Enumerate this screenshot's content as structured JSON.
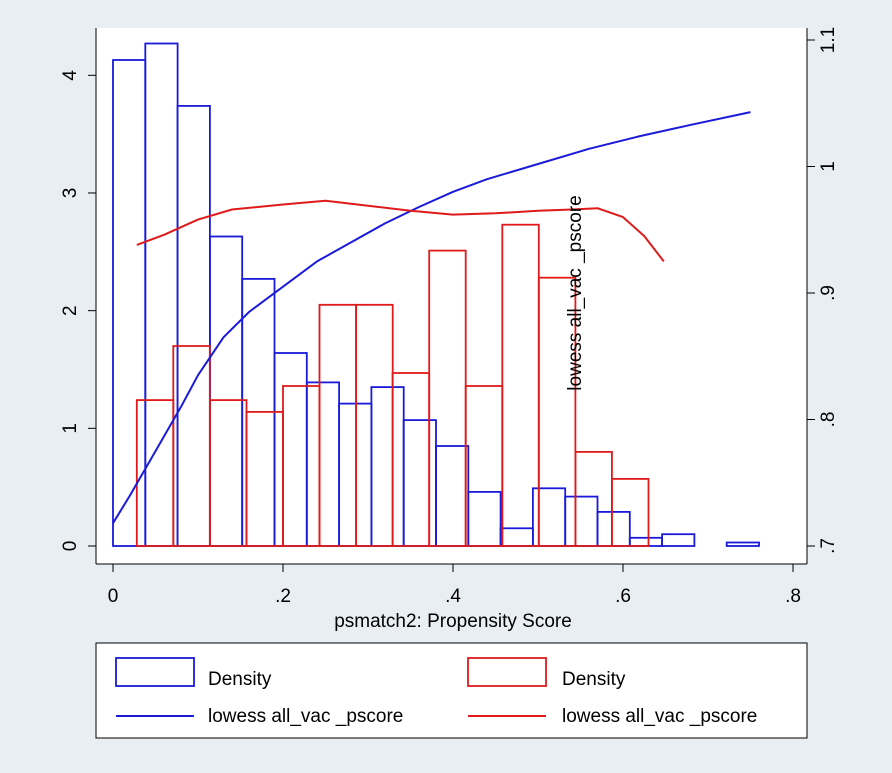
{
  "chart_data": {
    "type": "bar",
    "xlabel": "psmatch2: Propensity Score",
    "ylabel_right": "lowess all_vac _pscore",
    "xlim": [
      0,
      0.8
    ],
    "ylim_left": [
      0,
      4.3
    ],
    "ylim_right": [
      0.7,
      1.1
    ],
    "x_ticks": [
      {
        "value": 0,
        "label": "0"
      },
      {
        "value": 0.2,
        "label": ".2"
      },
      {
        "value": 0.4,
        "label": ".4"
      },
      {
        "value": 0.6,
        "label": ".6"
      },
      {
        "value": 0.8,
        "label": ".8"
      }
    ],
    "y_left_ticks": [
      {
        "value": 0,
        "label": "0"
      },
      {
        "value": 1,
        "label": "1"
      },
      {
        "value": 2,
        "label": "2"
      },
      {
        "value": 3,
        "label": "3"
      },
      {
        "value": 4,
        "label": "4"
      }
    ],
    "y_right_ticks": [
      {
        "value": 0.7,
        "label": ".7"
      },
      {
        "value": 0.8,
        "label": ".8"
      },
      {
        "value": 0.9,
        "label": ".9"
      },
      {
        "value": 1.0,
        "label": "1"
      },
      {
        "value": 1.1,
        "label": "1.1"
      }
    ],
    "grid": false,
    "legend_position": "bottom",
    "colors": {
      "blue": "#1a1adb",
      "red": "#e01a1a",
      "plot_bg": "#ffffff",
      "outer_bg": "#e9eef2"
    },
    "histograms": [
      {
        "name": "Density",
        "color": "#1a1adb",
        "bins": [
          {
            "x0": 0.0,
            "x1": 0.038,
            "y": 4.13
          },
          {
            "x0": 0.038,
            "x1": 0.076,
            "y": 4.27
          },
          {
            "x0": 0.076,
            "x1": 0.114,
            "y": 3.74
          },
          {
            "x0": 0.114,
            "x1": 0.152,
            "y": 2.63
          },
          {
            "x0": 0.152,
            "x1": 0.19,
            "y": 2.27
          },
          {
            "x0": 0.19,
            "x1": 0.228,
            "y": 1.64
          },
          {
            "x0": 0.228,
            "x1": 0.266,
            "y": 1.39
          },
          {
            "x0": 0.266,
            "x1": 0.304,
            "y": 1.21
          },
          {
            "x0": 0.304,
            "x1": 0.342,
            "y": 1.35
          },
          {
            "x0": 0.342,
            "x1": 0.38,
            "y": 1.07
          },
          {
            "x0": 0.38,
            "x1": 0.418,
            "y": 0.85
          },
          {
            "x0": 0.418,
            "x1": 0.456,
            "y": 0.46
          },
          {
            "x0": 0.456,
            "x1": 0.494,
            "y": 0.15
          },
          {
            "x0": 0.494,
            "x1": 0.532,
            "y": 0.49
          },
          {
            "x0": 0.532,
            "x1": 0.57,
            "y": 0.42
          },
          {
            "x0": 0.57,
            "x1": 0.608,
            "y": 0.29
          },
          {
            "x0": 0.608,
            "x1": 0.646,
            "y": 0.07
          },
          {
            "x0": 0.646,
            "x1": 0.684,
            "y": 0.1
          },
          {
            "x0": 0.722,
            "x1": 0.76,
            "y": 0.03
          }
        ]
      },
      {
        "name": "Density",
        "color": "#e01a1a",
        "bins": [
          {
            "x0": 0.028,
            "x1": 0.071,
            "y": 1.24
          },
          {
            "x0": 0.071,
            "x1": 0.114,
            "y": 1.7
          },
          {
            "x0": 0.114,
            "x1": 0.157,
            "y": 1.24
          },
          {
            "x0": 0.157,
            "x1": 0.2,
            "y": 1.14
          },
          {
            "x0": 0.2,
            "x1": 0.243,
            "y": 1.36
          },
          {
            "x0": 0.243,
            "x1": 0.286,
            "y": 2.05
          },
          {
            "x0": 0.286,
            "x1": 0.329,
            "y": 2.05
          },
          {
            "x0": 0.329,
            "x1": 0.372,
            "y": 1.47
          },
          {
            "x0": 0.372,
            "x1": 0.415,
            "y": 2.51
          },
          {
            "x0": 0.415,
            "x1": 0.458,
            "y": 1.36
          },
          {
            "x0": 0.458,
            "x1": 0.501,
            "y": 2.73
          },
          {
            "x0": 0.501,
            "x1": 0.544,
            "y": 2.28
          },
          {
            "x0": 0.544,
            "x1": 0.587,
            "y": 0.8
          },
          {
            "x0": 0.587,
            "x1": 0.63,
            "y": 0.57
          }
        ]
      }
    ],
    "lines": [
      {
        "name": "lowess all_vac _pscore",
        "color": "#1a1adb",
        "axis": "right",
        "points": [
          [
            0.0,
            0.718
          ],
          [
            0.02,
            0.74
          ],
          [
            0.05,
            0.775
          ],
          [
            0.08,
            0.81
          ],
          [
            0.1,
            0.835
          ],
          [
            0.13,
            0.865
          ],
          [
            0.16,
            0.885
          ],
          [
            0.2,
            0.905
          ],
          [
            0.24,
            0.925
          ],
          [
            0.28,
            0.94
          ],
          [
            0.32,
            0.955
          ],
          [
            0.36,
            0.968
          ],
          [
            0.4,
            0.98
          ],
          [
            0.44,
            0.99
          ],
          [
            0.5,
            1.002
          ],
          [
            0.56,
            1.014
          ],
          [
            0.62,
            1.024
          ],
          [
            0.68,
            1.033
          ],
          [
            0.75,
            1.043
          ]
        ]
      },
      {
        "name": "lowess all_vac _pscore",
        "color": "#e01a1a",
        "axis": "right",
        "points": [
          [
            0.028,
            0.938
          ],
          [
            0.06,
            0.946
          ],
          [
            0.1,
            0.958
          ],
          [
            0.14,
            0.966
          ],
          [
            0.2,
            0.97
          ],
          [
            0.25,
            0.973
          ],
          [
            0.3,
            0.969
          ],
          [
            0.35,
            0.965
          ],
          [
            0.4,
            0.962
          ],
          [
            0.45,
            0.963
          ],
          [
            0.5,
            0.965
          ],
          [
            0.54,
            0.966
          ],
          [
            0.57,
            0.967
          ],
          [
            0.6,
            0.96
          ],
          [
            0.625,
            0.945
          ],
          [
            0.648,
            0.925
          ]
        ]
      }
    ],
    "legend": [
      {
        "kind": "box",
        "color": "#1a1adb",
        "label": "Density"
      },
      {
        "kind": "box",
        "color": "#e01a1a",
        "label": "Density"
      },
      {
        "kind": "line",
        "color": "#1a1adb",
        "label": "lowess all_vac _pscore"
      },
      {
        "kind": "line",
        "color": "#e01a1a",
        "label": "lowess all_vac _pscore"
      }
    ]
  }
}
